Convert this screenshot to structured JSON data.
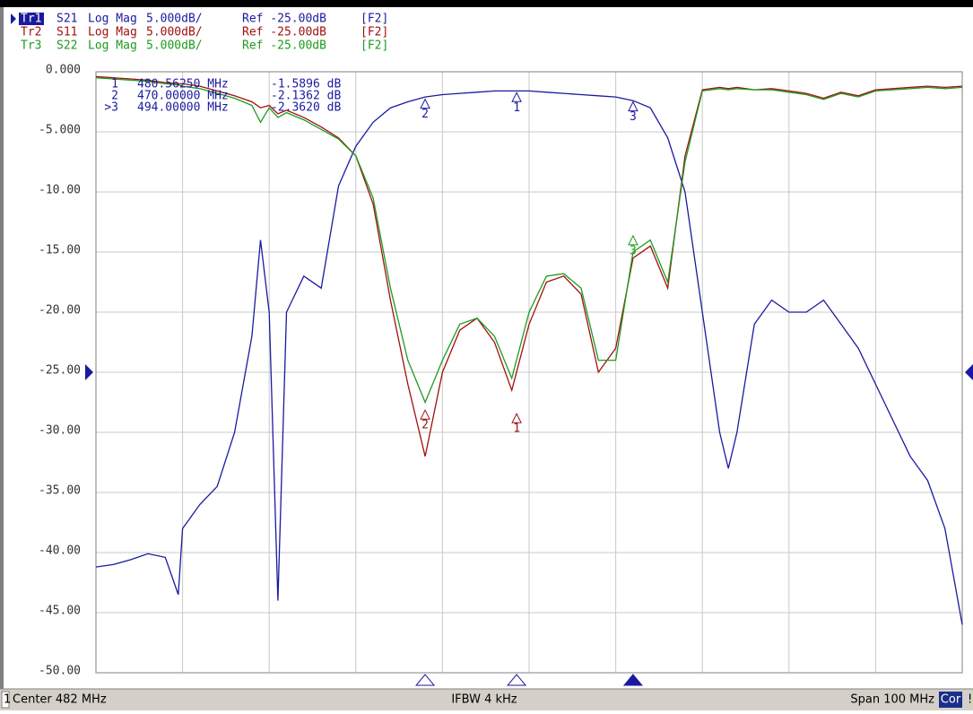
{
  "chart_data": {
    "type": "line",
    "x": [
      432,
      434,
      436,
      438,
      440,
      441.5,
      442,
      444,
      446,
      448,
      450,
      451,
      452,
      453,
      454,
      456,
      458,
      460,
      462,
      464,
      466,
      468,
      470,
      472,
      474,
      476,
      478,
      480,
      482,
      484,
      486,
      488,
      490,
      492,
      494,
      496,
      498,
      500,
      502,
      504,
      505,
      506,
      508,
      510,
      512,
      514,
      516,
      518,
      520,
      522,
      524,
      526,
      528,
      530,
      532
    ],
    "xlim": [
      432,
      532
    ],
    "xticks": [
      432,
      442,
      452,
      462,
      472,
      482,
      492,
      502,
      512,
      522,
      532
    ],
    "ylim": [
      -50,
      0
    ],
    "yticks": [
      {
        "value": 0,
        "label": "0.000"
      },
      {
        "value": -5,
        "label": "-5.000"
      },
      {
        "value": -10,
        "label": "-10.00"
      },
      {
        "value": -15,
        "label": "-15.00"
      },
      {
        "value": -20,
        "label": "-20.00"
      },
      {
        "value": -25,
        "label": "-25.00"
      },
      {
        "value": -30,
        "label": "-30.00"
      },
      {
        "value": -35,
        "label": "-35.00"
      },
      {
        "value": -40,
        "label": "-40.00"
      },
      {
        "value": -45,
        "label": "-45.00"
      },
      {
        "value": -50,
        "label": "-50.00"
      }
    ],
    "grid": true,
    "ref_level": -25,
    "series": [
      {
        "trace": "Tr1",
        "name": "S21",
        "format": "Log Mag",
        "scale_label": "5.000dB/",
        "ref_label": "Ref -25.00dB",
        "channel_label": "[F2]",
        "color": "#1a1aa0",
        "values": [
          -41.2,
          -41,
          -40.6,
          -40.1,
          -40.4,
          -43.5,
          -38,
          -36,
          -34.5,
          -30,
          -22,
          -14,
          -20,
          -44,
          -20,
          -17,
          -18,
          -9.5,
          -6.2,
          -4.2,
          -3.0,
          -2.5,
          -2.1,
          -1.9,
          -1.8,
          -1.7,
          -1.6,
          -1.6,
          -1.6,
          -1.7,
          -1.8,
          -1.9,
          -2.0,
          -2.1,
          -2.4,
          -3.0,
          -5.5,
          -10,
          -20,
          -30,
          -33,
          -30,
          -21,
          -19,
          -20,
          -20,
          -19,
          -21,
          -23,
          -26,
          -29,
          -32,
          -34,
          -38,
          -46
        ],
        "markers": [
          {
            "label": "1",
            "readout_label": "1",
            "x": 480.5625,
            "x_label": "480.56250 MHz",
            "value": -1.5896,
            "value_label": "-1.5896 dB"
          },
          {
            "label": "2",
            "readout_label": "2",
            "x": 470,
            "x_label": "470.00000 MHz",
            "value": -2.1362,
            "value_label": "-2.1362 dB"
          },
          {
            "label": "3",
            "readout_label": ">3",
            "x": 494,
            "x_label": "494.00000 MHz",
            "value": -2.362,
            "value_label": "-2.3620 dB"
          }
        ]
      },
      {
        "trace": "Tr2",
        "name": "S11",
        "format": "Log Mag",
        "scale_label": "5.000dB/",
        "ref_label": "Ref -25.00dB",
        "channel_label": "[F2]",
        "color": "#a01010",
        "values": [
          -0.4,
          -0.5,
          -0.6,
          -0.7,
          -0.9,
          -1.0,
          -1.0,
          -1.2,
          -1.6,
          -2.0,
          -2.5,
          -3.0,
          -2.8,
          -3.5,
          -3.2,
          -3.8,
          -4.6,
          -5.5,
          -7,
          -11,
          -19,
          -26,
          -32,
          -25,
          -21.5,
          -20.5,
          -22.5,
          -26.5,
          -21,
          -17.5,
          -17,
          -18.5,
          -25,
          -23,
          -15.5,
          -14.5,
          -18,
          -7,
          -1.5,
          -1.3,
          -1.4,
          -1.3,
          -1.5,
          -1.4,
          -1.6,
          -1.8,
          -2.2,
          -1.7,
          -2.0,
          -1.5,
          -1.4,
          -1.3,
          -1.2,
          -1.3,
          -1.2
        ],
        "markers": [
          {
            "label": "1",
            "x": 480.5625,
            "value": -28.3
          },
          {
            "label": "2",
            "x": 470,
            "value": -28
          }
        ]
      },
      {
        "trace": "Tr3",
        "name": "S22",
        "format": "Log Mag",
        "scale_label": "5.000dB/",
        "ref_label": "Ref -25.00dB",
        "channel_label": "[F2]",
        "color": "#1e9a1e",
        "values": [
          -0.5,
          -0.6,
          -0.7,
          -0.8,
          -1.0,
          -1.1,
          -1.2,
          -1.4,
          -1.8,
          -2.2,
          -2.8,
          -4.2,
          -3.0,
          -3.8,
          -3.4,
          -4.0,
          -4.8,
          -5.6,
          -7,
          -10.5,
          -18,
          -24,
          -27.5,
          -24,
          -21,
          -20.5,
          -22,
          -25.5,
          -20,
          -17,
          -16.8,
          -18,
          -24,
          -24,
          -15,
          -14,
          -17.5,
          -7.5,
          -1.6,
          -1.4,
          -1.5,
          -1.4,
          -1.5,
          -1.5,
          -1.7,
          -1.9,
          -2.3,
          -1.8,
          -2.1,
          -1.6,
          -1.5,
          -1.4,
          -1.3,
          -1.4,
          -1.3
        ],
        "markers": [
          {
            "label": "3",
            "x": 494,
            "value": -13.5
          }
        ]
      }
    ],
    "status": {
      "channel": "1",
      "center": "Center 482 MHz",
      "ifbw": "IFBW 4 kHz",
      "span": "Span 100 MHz",
      "correction": "Cor",
      "flag": "!"
    }
  }
}
